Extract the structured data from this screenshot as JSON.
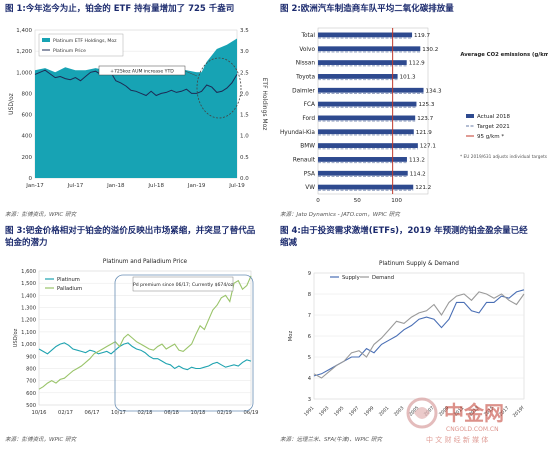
{
  "panels": [
    {
      "title": "图 1:今年迄今为止，铂金的 ETF 持有量增加了 725 千盎司",
      "source": "来源：彭博资讯，WPIC 研究"
    },
    {
      "title": "图 2:欧洲汽车制造商车队平均二氧化碳排放量",
      "source": "来源：Jato Dynamics - JATO.com，WPIC 研究"
    },
    {
      "title": "图 3:钯金价格相对于铂金的溢价反映出市场紧缩，并突显了替代品",
      "title2": "铂金的潜力",
      "source": "来源：彭博资讯，WPIC 研究"
    },
    {
      "title": "图 4:由于投资需求激增(ETFs)，2019 年预测的铂金盈余量已经",
      "title2": "缩减",
      "source": "来源：远理兰米、SFA(牛津)、WPIC 研究"
    }
  ],
  "chart_data": [
    {
      "type": "area",
      "title": "",
      "ylabel": "USD/oz",
      "y2label": "ETF Holdings Moz",
      "ylim": [
        0,
        1400
      ],
      "y2lim": [
        0.0,
        3.5
      ],
      "yticks": [
        "0",
        "200",
        "400",
        "600",
        "800",
        "1,000",
        "1,200",
        "1,400"
      ],
      "y2ticks": [
        "0.0",
        "0.5",
        "1.0",
        "1.5",
        "2.0",
        "2.5",
        "3.0",
        "3.5"
      ],
      "xticks": [
        "Jan-17",
        "Jul-17",
        "Jan-18",
        "Jul-18",
        "Jan-19",
        "Jul-19"
      ],
      "annotation": "+725koz AUM increase YTD",
      "series": [
        {
          "name": "Platinum ETF Holdings, Moz",
          "color": "#17a3b4",
          "axis": "right",
          "x": [
            0,
            2,
            4,
            6,
            8,
            10,
            12,
            14,
            16,
            18,
            20,
            22,
            24,
            26,
            28,
            30,
            32,
            33,
            34,
            35,
            36,
            38,
            40
          ],
          "values": [
            2.55,
            2.6,
            2.5,
            2.62,
            2.55,
            2.55,
            2.6,
            2.55,
            2.55,
            2.6,
            2.5,
            2.55,
            2.55,
            2.5,
            2.6,
            2.55,
            2.5,
            2.5,
            2.75,
            2.9,
            3.05,
            3.15,
            3.3
          ]
        },
        {
          "name": "Platinum Price",
          "color": "#1d2b55",
          "axis": "left",
          "x": [
            0,
            1,
            2,
            3,
            4,
            5,
            6,
            7,
            8,
            9,
            10,
            11,
            12,
            13,
            14,
            15,
            16,
            17,
            18,
            19,
            20,
            21,
            22,
            23,
            24,
            25,
            26,
            27,
            28,
            29,
            30,
            31,
            32,
            33,
            34,
            35,
            36,
            37,
            38,
            39,
            40
          ],
          "values": [
            980,
            1000,
            1020,
            985,
            950,
            960,
            940,
            930,
            950,
            920,
            960,
            1000,
            1010,
            980,
            1000,
            1000,
            920,
            900,
            870,
            830,
            820,
            800,
            780,
            820,
            780,
            800,
            810,
            830,
            810,
            820,
            840,
            800,
            800,
            820,
            880,
            860,
            810,
            820,
            850,
            900,
            980
          ]
        }
      ]
    },
    {
      "type": "bar",
      "title": "",
      "categories": [
        "Total",
        "Volvo",
        "Nissan",
        "Toyota",
        "Daimler",
        "FCA",
        "Ford",
        "Hyundai-Kia",
        "BMW",
        "Renault",
        "PSA",
        "VW"
      ],
      "values": [
        119.7,
        130.2,
        112.9,
        101.3,
        134.3,
        125.3,
        123.7,
        121.9,
        127.1,
        113.2,
        114.2,
        121.2
      ],
      "xlim": [
        0,
        140
      ],
      "xticks": [
        "0",
        "50",
        "100"
      ],
      "target_line": 95,
      "right_axis_title": "Average CO2 emissions (g/km)",
      "legend": [
        "Actual 2018",
        "Target 2021",
        "95 g/km *"
      ],
      "footnote": "* EU 2019/631 adjusts individual targets by vehicle weights",
      "colors": {
        "actual": "#2e4a8f",
        "target": "#9aa7c4",
        "line": "#c0392b"
      }
    },
    {
      "type": "line",
      "title": "Platinum and Palladium Price",
      "ylabel": "USD/oz",
      "ylim": [
        500,
        1600
      ],
      "yticks": [
        "500",
        "600",
        "700",
        "800",
        "900",
        "1,000",
        "1,100",
        "1,200",
        "1,300",
        "1,400",
        "1,500",
        "1,600"
      ],
      "xticks": [
        "10/16",
        "02/17",
        "06/17",
        "10/17",
        "02/18",
        "06/18",
        "10/18",
        "02/19",
        "06/19"
      ],
      "annotation": "Pd premium since 06/17; Currently $674/oz",
      "series": [
        {
          "name": "Platinum",
          "color": "#1fa3b0",
          "x": [
            0,
            2,
            4,
            6,
            8,
            10,
            12,
            14,
            16,
            18,
            20,
            22,
            24,
            26,
            28,
            30,
            32,
            34,
            36,
            38,
            40,
            42,
            44,
            46,
            48,
            50,
            52,
            54,
            56,
            58,
            60,
            62,
            64,
            66,
            68,
            70,
            72,
            74,
            76,
            78,
            80,
            82,
            84,
            86,
            88,
            90,
            92,
            94,
            96,
            98,
            100
          ],
          "values": [
            960,
            940,
            920,
            950,
            980,
            1000,
            1010,
            990,
            960,
            950,
            940,
            930,
            950,
            940,
            920,
            930,
            940,
            920,
            950,
            980,
            1000,
            1010,
            980,
            960,
            950,
            930,
            900,
            880,
            880,
            860,
            840,
            830,
            800,
            820,
            800,
            790,
            810,
            800,
            800,
            810,
            820,
            840,
            850,
            830,
            810,
            820,
            830,
            820,
            850,
            870,
            860
          ]
        },
        {
          "name": "Palladium",
          "color": "#9ac46a",
          "x": [
            0,
            2,
            4,
            6,
            8,
            10,
            12,
            14,
            16,
            18,
            20,
            22,
            24,
            26,
            28,
            30,
            32,
            34,
            36,
            38,
            40,
            42,
            44,
            46,
            48,
            50,
            52,
            54,
            56,
            58,
            60,
            62,
            64,
            66,
            68,
            70,
            72,
            74,
            76,
            78,
            80,
            82,
            84,
            86,
            88,
            90,
            92,
            94,
            96,
            98,
            100
          ],
          "values": [
            630,
            650,
            680,
            700,
            680,
            710,
            720,
            750,
            780,
            800,
            820,
            850,
            880,
            920,
            940,
            960,
            980,
            1000,
            1020,
            980,
            1050,
            1080,
            1050,
            1020,
            1000,
            980,
            960,
            950,
            980,
            1000,
            960,
            980,
            1000,
            950,
            940,
            970,
            1000,
            1080,
            1150,
            1120,
            1200,
            1280,
            1320,
            1380,
            1400,
            1350,
            1500,
            1520,
            1450,
            1480,
            1560
          ]
        }
      ]
    },
    {
      "type": "line",
      "title": "Platinum Supply & Demand",
      "ylabel": "Moz",
      "ylim": [
        3,
        9
      ],
      "yticks": [
        "3",
        "4",
        "5",
        "6",
        "7",
        "8",
        "9"
      ],
      "xticks": [
        "1991",
        "1993",
        "1995",
        "1997",
        "1999",
        "2001",
        "2003",
        "2005",
        "2007",
        "2009",
        "2011",
        "2013",
        "2015",
        "2017",
        "2019f"
      ],
      "series": [
        {
          "name": "Supply",
          "color": "#4a6fb5",
          "x": [
            1991,
            1992,
            1993,
            1994,
            1995,
            1996,
            1997,
            1998,
            1999,
            2000,
            2001,
            2002,
            2003,
            2004,
            2005,
            2006,
            2007,
            2008,
            2009,
            2010,
            2011,
            2012,
            2013,
            2014,
            2015,
            2016,
            2017,
            2018,
            2019
          ],
          "values": [
            4.1,
            4.2,
            4.4,
            4.6,
            4.8,
            5.0,
            5.0,
            5.4,
            5.2,
            5.6,
            5.8,
            6.0,
            6.3,
            6.5,
            6.8,
            6.9,
            6.8,
            6.4,
            6.8,
            7.6,
            7.6,
            7.2,
            7.1,
            7.6,
            7.6,
            7.9,
            7.8,
            8.1,
            8.2
          ]
        },
        {
          "name": "Demand",
          "color": "#9a9a9a",
          "x": [
            1991,
            1992,
            1993,
            1994,
            1995,
            1996,
            1997,
            1998,
            1999,
            2000,
            2001,
            2002,
            2003,
            2004,
            2005,
            2006,
            2007,
            2008,
            2009,
            2010,
            2011,
            2012,
            2013,
            2014,
            2015,
            2016,
            2017,
            2018,
            2019
          ],
          "values": [
            4.2,
            4.0,
            4.3,
            4.6,
            4.8,
            5.2,
            5.3,
            5.0,
            5.6,
            5.9,
            6.3,
            6.7,
            6.6,
            6.9,
            7.1,
            7.2,
            7.5,
            7.0,
            7.6,
            7.9,
            8.0,
            7.7,
            8.1,
            8.0,
            7.8,
            8.0,
            7.7,
            7.5,
            8.0
          ]
        }
      ]
    }
  ],
  "watermark": {
    "cn_name": "中金网",
    "url": "CNGOLD.COM.CN",
    "tagline": "中 文 财 经 新 媒 体",
    "color": "#c0392b"
  }
}
